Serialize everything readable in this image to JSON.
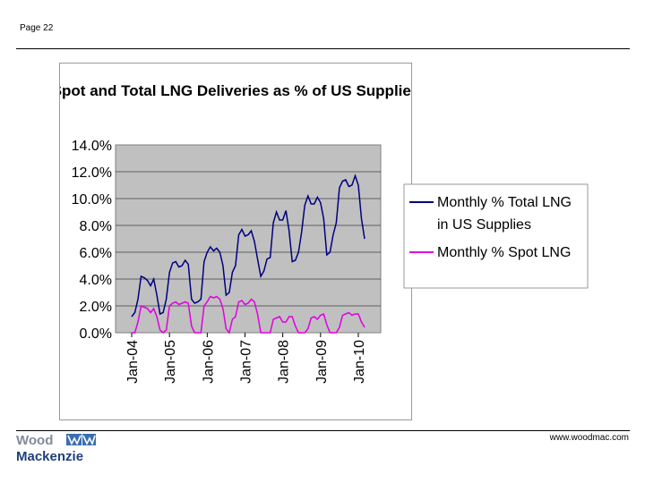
{
  "page": {
    "label": "Page 22",
    "website": "www.woodmac.com"
  },
  "logo": {
    "line1": "Wood",
    "line2": "Mackenzie"
  },
  "colors": {
    "plot_bg": "#c0c0c0",
    "total_series": "#000080",
    "spot_series": "#e000e0"
  },
  "chart_data": {
    "type": "line",
    "title": "Spot and Total LNG Deliveries as % of US Supplies",
    "xlabel": "",
    "ylabel": "",
    "ylim": [
      0,
      14
    ],
    "yticks": [
      "0.0%",
      "2.0%",
      "4.0%",
      "6.0%",
      "8.0%",
      "10.0%",
      "12.0%",
      "14.0%"
    ],
    "ytick_values": [
      0,
      2,
      4,
      6,
      8,
      10,
      12,
      14
    ],
    "xticks": [
      "Jan-04",
      "Jan-05",
      "Jan-06",
      "Jan-07",
      "Jan-08",
      "Jan-09",
      "Jan-10"
    ],
    "xtick_positions": [
      0,
      12,
      24,
      36,
      48,
      60,
      72
    ],
    "grid": true,
    "legend_position": "right",
    "series": [
      {
        "name": "Monthly % Total LNG in US Supplies",
        "legend_lines": [
          "Monthly % Total LNG",
          "in US Supplies"
        ],
        "color": "#000080",
        "values": [
          1.2,
          1.5,
          2.5,
          4.2,
          4.1,
          3.9,
          3.5,
          4.0,
          2.8,
          1.4,
          1.5,
          2.5,
          4.5,
          5.2,
          5.3,
          4.9,
          5.0,
          5.4,
          5.1,
          2.5,
          2.2,
          2.3,
          2.5,
          5.3,
          6.0,
          6.4,
          6.1,
          6.3,
          6.0,
          5.0,
          2.8,
          3.0,
          4.5,
          5.0,
          7.3,
          7.7,
          7.2,
          7.3,
          7.6,
          6.8,
          5.5,
          4.2,
          4.6,
          5.5,
          5.6,
          8.2,
          9.0,
          8.4,
          8.4,
          9.1,
          7.6,
          5.3,
          5.4,
          6.0,
          7.5,
          9.5,
          10.2,
          9.6,
          9.6,
          10.1,
          9.7,
          8.5,
          5.8,
          6.0,
          7.3,
          8.2,
          10.8,
          11.3,
          11.4,
          10.9,
          11.0,
          11.7,
          11.0,
          8.5,
          7.0
        ]
      },
      {
        "name": "Monthly % Spot LNG",
        "legend_lines": [
          "Monthly % Spot LNG"
        ],
        "color": "#e000e0",
        "values": [
          0.0,
          0.0,
          0.8,
          2.0,
          1.9,
          1.8,
          1.5,
          1.8,
          1.2,
          0.2,
          0.0,
          0.2,
          2.0,
          2.2,
          2.3,
          2.1,
          2.2,
          2.3,
          2.2,
          0.5,
          0.0,
          0.0,
          0.0,
          2.0,
          2.3,
          2.7,
          2.6,
          2.7,
          2.5,
          1.8,
          0.3,
          0.0,
          1.0,
          1.2,
          2.3,
          2.4,
          2.1,
          2.2,
          2.5,
          2.3,
          1.4,
          0.0,
          0.0,
          0.0,
          0.0,
          1.0,
          1.1,
          1.2,
          0.8,
          0.8,
          1.2,
          1.2,
          0.5,
          0.0,
          0.0,
          0.0,
          0.3,
          1.1,
          1.2,
          1.0,
          1.3,
          1.4,
          0.6,
          0.0,
          0.0,
          0.0,
          0.4,
          1.3,
          1.4,
          1.5,
          1.3,
          1.4,
          1.4,
          0.8,
          0.4
        ]
      }
    ]
  }
}
